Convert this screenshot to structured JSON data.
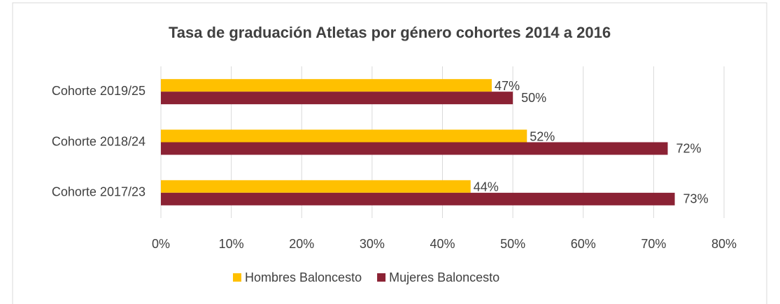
{
  "chart_data": {
    "type": "bar",
    "orientation": "horizontal",
    "title": "Tasa de graduación Atletas por género cohortes 2014 a 2016",
    "categories": [
      "Cohorte 2019/25",
      "Cohorte 2018/24",
      "Cohorte 2017/23"
    ],
    "series": [
      {
        "name": "Hombres Baloncesto",
        "color": "#FFC000",
        "values": [
          47,
          52,
          44
        ],
        "value_labels": [
          "47%",
          "52%",
          "44%"
        ]
      },
      {
        "name": "Mujeres Baloncesto",
        "color": "#8B2234",
        "values": [
          50,
          72,
          73
        ],
        "value_labels": [
          "50%",
          "72%",
          "73%"
        ]
      }
    ],
    "xlim": [
      0,
      80
    ],
    "xticks": [
      {
        "value": 0,
        "label": "0%"
      },
      {
        "value": 10,
        "label": "10%"
      },
      {
        "value": 20,
        "label": "20%"
      },
      {
        "value": 30,
        "label": "30%"
      },
      {
        "value": 40,
        "label": "40%"
      },
      {
        "value": 50,
        "label": "50%"
      },
      {
        "value": 60,
        "label": "60%"
      },
      {
        "value": 70,
        "label": "70%"
      },
      {
        "value": 80,
        "label": "80%"
      }
    ],
    "grid": true,
    "legend": "bottom"
  }
}
